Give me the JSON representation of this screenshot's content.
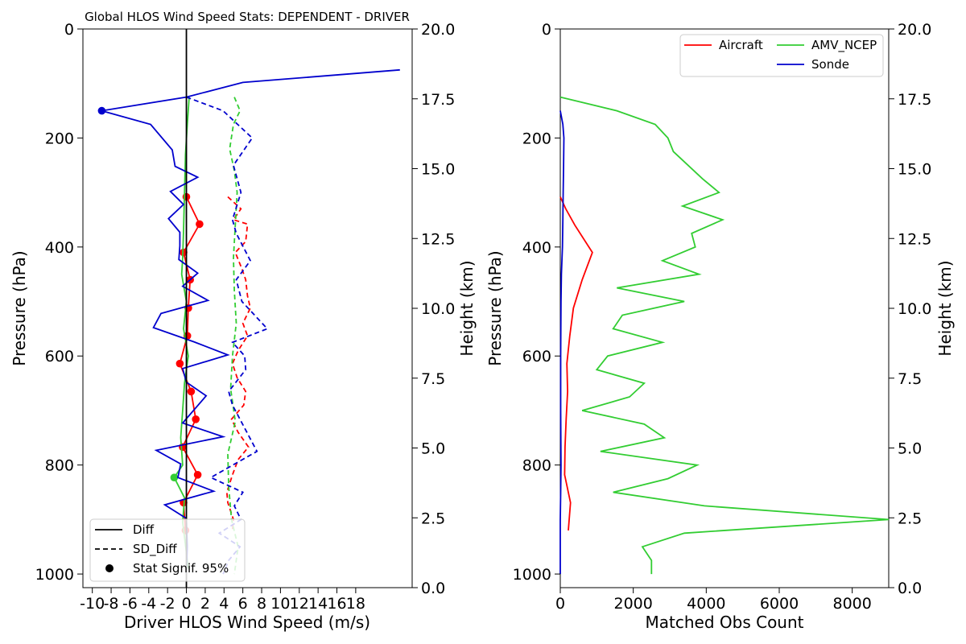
{
  "chart_data": [
    {
      "type": "line",
      "title": "Global HLOS Wind Speed Stats: DEPENDENT - DRIVER",
      "xlabel": "Driver HLOS Wind Speed (m/s)",
      "ylabel": "Pressure (hPa)",
      "y2label": "Height (km)",
      "xlim": [
        -11,
        24
      ],
      "ylim": [
        1025,
        0
      ],
      "y2lim": [
        0,
        20
      ],
      "x_tick_labels": [
        "-10",
        "-8",
        "-6",
        "-4",
        "-2",
        "0",
        "2",
        "4",
        "6",
        "8",
        "10",
        "12",
        "14",
        "16",
        "18"
      ],
      "y_ticks": [
        0,
        200,
        400,
        600,
        800,
        1000
      ],
      "y2_ticks": [
        "0.0",
        "2.5",
        "5.0",
        "7.5",
        "10.0",
        "12.5",
        "15.0",
        "17.5",
        "20.0"
      ],
      "legend": {
        "placement": "lower-left",
        "entries": [
          {
            "label": "Diff",
            "style": "solid"
          },
          {
            "label": "SD_Diff",
            "style": "dashed"
          },
          {
            "label": "Stat Signif. 95%",
            "style": "marker"
          }
        ]
      },
      "series": [
        {
          "name": "Aircraft",
          "stat": "Diff",
          "color": "#ff0000",
          "points": [
            [
              0,
              308
            ],
            [
              1.4,
              358
            ],
            [
              -0.3,
              410
            ],
            [
              0.4,
              460
            ],
            [
              0.2,
              512
            ],
            [
              0.1,
              563
            ],
            [
              -0.7,
              614
            ],
            [
              0.5,
              665
            ],
            [
              1.0,
              716
            ],
            [
              -0.4,
              767
            ],
            [
              1.2,
              818
            ],
            [
              -0.3,
              869
            ],
            [
              -0.1,
              920
            ]
          ],
          "signif": [
            [
              0,
              308
            ],
            [
              1.4,
              358
            ],
            [
              -0.3,
              410
            ],
            [
              0.4,
              460
            ],
            [
              0.2,
              512
            ],
            [
              0.1,
              563
            ],
            [
              -0.7,
              614
            ],
            [
              0.5,
              665
            ],
            [
              1.0,
              716
            ],
            [
              -0.4,
              767
            ],
            [
              1.2,
              818
            ],
            [
              -0.3,
              869
            ],
            [
              -0.1,
              920
            ]
          ]
        },
        {
          "name": "Aircraft",
          "stat": "SD_Diff",
          "color": "#ff0000",
          "points": [
            [
              4.4,
              308
            ],
            [
              5.8,
              330
            ],
            [
              5.0,
              350
            ],
            [
              6.5,
              358
            ],
            [
              6.3,
              390
            ],
            [
              5.2,
              410
            ],
            [
              5.9,
              440
            ],
            [
              6.3,
              460
            ],
            [
              6.5,
              490
            ],
            [
              6.8,
              512
            ],
            [
              6.0,
              540
            ],
            [
              6.5,
              563
            ],
            [
              5.5,
              590
            ],
            [
              4.9,
              614
            ],
            [
              5.4,
              640
            ],
            [
              6.3,
              665
            ],
            [
              6.1,
              690
            ],
            [
              4.8,
              716
            ],
            [
              5.5,
              740
            ],
            [
              6.6,
              767
            ],
            [
              5.5,
              790
            ],
            [
              4.9,
              818
            ],
            [
              4.3,
              850
            ],
            [
              4.4,
              869
            ],
            [
              5.0,
              900
            ],
            [
              4.9,
              920
            ]
          ]
        },
        {
          "name": "AMV_NCEP",
          "stat": "Diff",
          "color": "#32cd32",
          "points": [
            [
              0.3,
              125
            ],
            [
              0.1,
              175
            ],
            [
              -0.1,
              230
            ],
            [
              -0.2,
              300
            ],
            [
              -0.3,
              370
            ],
            [
              -0.4,
              420
            ],
            [
              -0.5,
              450
            ],
            [
              0.0,
              500
            ],
            [
              -0.3,
              550
            ],
            [
              0.2,
              600
            ],
            [
              -0.2,
              650
            ],
            [
              -0.4,
              700
            ],
            [
              -0.6,
              750
            ],
            [
              -0.4,
              800
            ],
            [
              -1.3,
              823
            ],
            [
              -0.2,
              860
            ],
            [
              -0.4,
              905
            ],
            [
              0.0,
              960
            ],
            [
              0.2,
              990
            ]
          ],
          "signif": [
            [
              -1.3,
              823
            ]
          ]
        },
        {
          "name": "AMV_NCEP",
          "stat": "SD_Diff",
          "color": "#32cd32",
          "points": [
            [
              5.1,
              125
            ],
            [
              5.7,
              150
            ],
            [
              5.0,
              175
            ],
            [
              4.6,
              220
            ],
            [
              5.1,
              260
            ],
            [
              5.4,
              300
            ],
            [
              5.2,
              360
            ],
            [
              5.0,
              420
            ],
            [
              5.1,
              480
            ],
            [
              5.3,
              540
            ],
            [
              4.9,
              600
            ],
            [
              4.7,
              660
            ],
            [
              5.2,
              720
            ],
            [
              4.4,
              780
            ],
            [
              4.5,
              840
            ],
            [
              4.8,
              900
            ],
            [
              5.5,
              950
            ],
            [
              5.1,
              1000
            ]
          ]
        },
        {
          "name": "Sonde",
          "stat": "Diff",
          "color": "#0000cd",
          "points": [
            [
              22.7,
              75
            ],
            [
              6.0,
              98
            ],
            [
              0.0,
              125
            ],
            [
              -9.0,
              150
            ],
            [
              -3.8,
              175
            ],
            [
              -1.5,
              222
            ],
            [
              -1.2,
              252
            ],
            [
              1.2,
              272
            ],
            [
              -1.7,
              298
            ],
            [
              -0.3,
              322
            ],
            [
              -1.9,
              348
            ],
            [
              -0.7,
              373
            ],
            [
              -0.7,
              398
            ],
            [
              -0.8,
              423
            ],
            [
              1.2,
              448
            ],
            [
              -0.4,
              472
            ],
            [
              2.3,
              498
            ],
            [
              -2.7,
              522
            ],
            [
              -3.5,
              548
            ],
            [
              0.8,
              574
            ],
            [
              4.4,
              598
            ],
            [
              -0.4,
              623
            ],
            [
              0.0,
              648
            ],
            [
              2.1,
              673
            ],
            [
              -0.4,
              723
            ],
            [
              3.9,
              748
            ],
            [
              -3.2,
              773
            ],
            [
              -0.6,
              798
            ],
            [
              -0.9,
              823
            ],
            [
              2.9,
              848
            ],
            [
              -2.3,
              873
            ],
            [
              0.0,
              898
            ],
            [
              0.1,
              950
            ],
            [
              0.0,
              1000
            ]
          ],
          "signif": [
            [
              -9.0,
              150
            ]
          ]
        },
        {
          "name": "Sonde",
          "stat": "SD_Diff",
          "color": "#0000cd",
          "points": [
            [
              0.0,
              125
            ],
            [
              3.9,
              150
            ],
            [
              7.0,
              200
            ],
            [
              5.0,
              250
            ],
            [
              5.8,
              300
            ],
            [
              4.9,
              350
            ],
            [
              5.3,
              375
            ],
            [
              6.8,
              425
            ],
            [
              5.3,
              460
            ],
            [
              5.9,
              500
            ],
            [
              8.6,
              550
            ],
            [
              4.9,
              575
            ],
            [
              6.2,
              600
            ],
            [
              6.3,
              625
            ],
            [
              4.5,
              665
            ],
            [
              4.9,
              690
            ],
            [
              7.5,
              775
            ],
            [
              2.6,
              823
            ],
            [
              6.0,
              850
            ],
            [
              5.1,
              875
            ],
            [
              5.8,
              900
            ],
            [
              3.5,
              925
            ],
            [
              5.7,
              950
            ],
            [
              4.5,
              975
            ],
            [
              3.9,
              1000
            ]
          ]
        }
      ]
    },
    {
      "type": "line",
      "title": "",
      "xlabel": "Matched Obs Count",
      "ylabel": "Pressure (hPa)",
      "y2label": "Height (km)",
      "xlim": [
        0,
        9000
      ],
      "ylim": [
        1025,
        0
      ],
      "y2lim": [
        0,
        20
      ],
      "x_ticks": [
        0,
        2000,
        4000,
        6000,
        8000
      ],
      "y_ticks": [
        0,
        200,
        400,
        600,
        800,
        1000
      ],
      "y2_ticks": [
        "0.0",
        "2.5",
        "5.0",
        "7.5",
        "10.0",
        "12.5",
        "15.0",
        "17.5",
        "20.0"
      ],
      "legend": {
        "placement": "upper-right"
      },
      "series": [
        {
          "name": "Aircraft",
          "color": "#ff0000",
          "points": [
            [
              0,
              308
            ],
            [
              150,
              330
            ],
            [
              400,
              360
            ],
            [
              880,
              410
            ],
            [
              600,
              460
            ],
            [
              360,
              512
            ],
            [
              260,
              563
            ],
            [
              180,
              614
            ],
            [
              200,
              665
            ],
            [
              160,
              716
            ],
            [
              130,
              767
            ],
            [
              120,
              818
            ],
            [
              280,
              869
            ],
            [
              220,
              920
            ]
          ]
        },
        {
          "name": "AMV_NCEP",
          "color": "#32cd32",
          "points": [
            [
              0,
              125
            ],
            [
              1550,
              150
            ],
            [
              2600,
              175
            ],
            [
              2950,
              200
            ],
            [
              3100,
              225
            ],
            [
              3900,
              275
            ],
            [
              4350,
              300
            ],
            [
              3350,
              325
            ],
            [
              4450,
              350
            ],
            [
              3600,
              375
            ],
            [
              3700,
              400
            ],
            [
              2800,
              425
            ],
            [
              3800,
              450
            ],
            [
              1550,
              475
            ],
            [
              3400,
              500
            ],
            [
              1700,
              525
            ],
            [
              1450,
              550
            ],
            [
              2800,
              575
            ],
            [
              1300,
              600
            ],
            [
              1000,
              625
            ],
            [
              2300,
              650
            ],
            [
              1900,
              675
            ],
            [
              600,
              700
            ],
            [
              2300,
              725
            ],
            [
              2850,
              750
            ],
            [
              1100,
              775
            ],
            [
              3750,
              800
            ],
            [
              2950,
              825
            ],
            [
              1450,
              850
            ],
            [
              3950,
              875
            ],
            [
              9000,
              900
            ],
            [
              3400,
              925
            ],
            [
              2250,
              950
            ],
            [
              2500,
              975
            ],
            [
              2500,
              1000
            ]
          ]
        },
        {
          "name": "Sonde",
          "color": "#0000cd",
          "points": [
            [
              0,
              150
            ],
            [
              70,
              175
            ],
            [
              100,
              200
            ],
            [
              90,
              250
            ],
            [
              80,
              300
            ],
            [
              70,
              350
            ],
            [
              60,
              400
            ],
            [
              30,
              450
            ],
            [
              20,
              500
            ],
            [
              10,
              600
            ],
            [
              10,
              700
            ],
            [
              20,
              800
            ],
            [
              10,
              850
            ],
            [
              0,
              900
            ],
            [
              0,
              1000
            ]
          ]
        }
      ]
    }
  ]
}
